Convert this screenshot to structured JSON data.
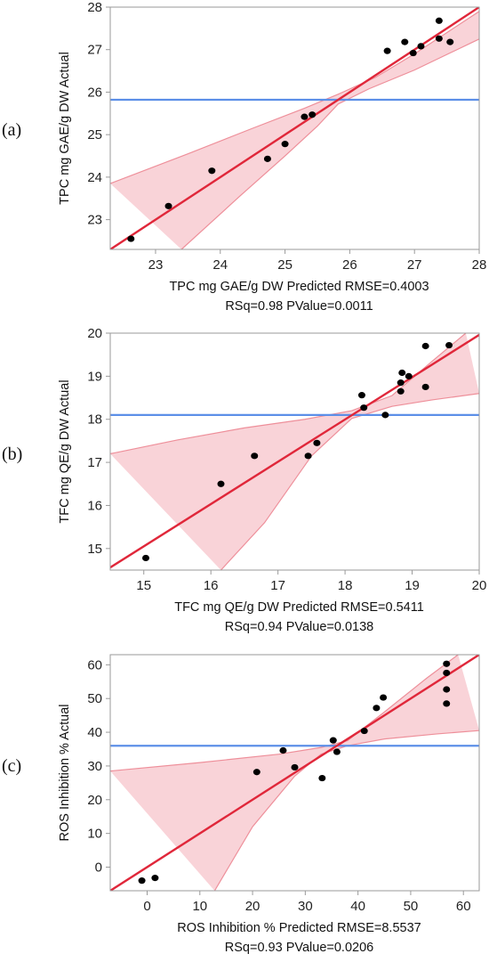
{
  "colors": {
    "fit_line": "#e0273a",
    "confidence_band": "#f9d3d8",
    "confidence_edge": "#ee8f9a",
    "mean_line": "#5c8fe8",
    "points": "#000000",
    "frame": "#9a9a9a"
  },
  "chart_data": [
    {
      "type": "scatter",
      "panel_label": "(a)",
      "xlabel": "TPC mg GAE/g DW Predicted RMSE=0.4003",
      "stat_line": "RSq=0.98 PValue=0.0011",
      "ylabel": "TPC mg GAE/g DW Actual",
      "xlim": [
        22.3,
        28
      ],
      "ylim": [
        22.3,
        28
      ],
      "xticks": [
        "23",
        "24",
        "25",
        "26",
        "27",
        "28"
      ],
      "yticks": [
        "23",
        "24",
        "25",
        "26",
        "27",
        "28"
      ],
      "mean_y": 25.82,
      "fit_line": [
        [
          22.3,
          22.3
        ],
        [
          28,
          28
        ]
      ],
      "band_upper": [
        [
          22.3,
          23.85
        ],
        [
          23.5,
          24.55
        ],
        [
          24.5,
          25.15
        ],
        [
          25.3,
          25.62
        ],
        [
          25.82,
          25.95
        ],
        [
          26.4,
          26.35
        ],
        [
          27,
          26.9
        ],
        [
          28,
          27.9
        ]
      ],
      "band_lower": [
        [
          23.4,
          22.3
        ],
        [
          24.3,
          23.55
        ],
        [
          25.0,
          24.5
        ],
        [
          25.5,
          25.2
        ],
        [
          25.82,
          25.72
        ],
        [
          26.3,
          26.08
        ],
        [
          27.0,
          26.52
        ],
        [
          28,
          27.25
        ]
      ],
      "points": [
        {
          "x": 22.62,
          "y": 22.55
        },
        {
          "x": 23.2,
          "y": 23.32
        },
        {
          "x": 23.87,
          "y": 24.15
        },
        {
          "x": 24.73,
          "y": 24.43
        },
        {
          "x": 25.0,
          "y": 24.78
        },
        {
          "x": 25.3,
          "y": 25.42
        },
        {
          "x": 25.42,
          "y": 25.47
        },
        {
          "x": 26.58,
          "y": 26.97
        },
        {
          "x": 26.85,
          "y": 27.18
        },
        {
          "x": 26.98,
          "y": 26.92
        },
        {
          "x": 27.1,
          "y": 27.08
        },
        {
          "x": 27.38,
          "y": 27.26
        },
        {
          "x": 27.38,
          "y": 27.68
        },
        {
          "x": 27.55,
          "y": 27.18
        }
      ]
    },
    {
      "type": "scatter",
      "panel_label": "(b)",
      "xlabel": "TFC mg QE/g DW Predicted RMSE=0.5411",
      "stat_line": "RSq=0.94 PValue=0.0138",
      "ylabel": "TFC mg QE/g DW Actual",
      "xlim": [
        14.5,
        20
      ],
      "ylim": [
        14.5,
        20
      ],
      "xticks": [
        "15",
        "16",
        "17",
        "18",
        "19",
        "20"
      ],
      "yticks": [
        "15",
        "16",
        "17",
        "18",
        "19",
        "20"
      ],
      "mean_y": 18.1,
      "fit_line": [
        [
          14.5,
          14.56
        ],
        [
          20,
          19.96
        ]
      ],
      "band_upper": [
        [
          14.5,
          17.2
        ],
        [
          15.5,
          17.52
        ],
        [
          16.5,
          17.8
        ],
        [
          17.4,
          18.0
        ],
        [
          18.1,
          18.2
        ],
        [
          18.7,
          18.55
        ],
        [
          19.3,
          19.35
        ],
        [
          19.8,
          20.0
        ]
      ],
      "band_lower": [
        [
          16.15,
          14.5
        ],
        [
          16.8,
          15.6
        ],
        [
          17.5,
          17.15
        ],
        [
          18.1,
          18.02
        ],
        [
          18.7,
          18.3
        ],
        [
          19.3,
          18.45
        ],
        [
          20,
          18.6
        ]
      ],
      "points": [
        {
          "x": 15.03,
          "y": 14.78
        },
        {
          "x": 16.15,
          "y": 16.5
        },
        {
          "x": 16.65,
          "y": 17.15
        },
        {
          "x": 17.45,
          "y": 17.15
        },
        {
          "x": 17.58,
          "y": 17.45
        },
        {
          "x": 18.25,
          "y": 18.56
        },
        {
          "x": 18.28,
          "y": 18.27
        },
        {
          "x": 18.6,
          "y": 18.1
        },
        {
          "x": 18.83,
          "y": 18.65
        },
        {
          "x": 18.83,
          "y": 18.85
        },
        {
          "x": 18.85,
          "y": 19.08
        },
        {
          "x": 18.95,
          "y": 19.0
        },
        {
          "x": 19.2,
          "y": 19.7
        },
        {
          "x": 19.2,
          "y": 18.75
        },
        {
          "x": 19.55,
          "y": 19.72
        }
      ]
    },
    {
      "type": "scatter",
      "panel_label": "(c)",
      "xlabel": "ROS Inhibition % Predicted RMSE=8.5537",
      "stat_line": "RSq=0.93 PValue=0.0206",
      "ylabel": "ROS Inhibition % Actual",
      "xlim": [
        -7,
        63
      ],
      "ylim": [
        -7,
        63
      ],
      "xticks": [
        "0",
        "10",
        "20",
        "30",
        "40",
        "50",
        "60"
      ],
      "yticks": [
        "0",
        "10",
        "20",
        "30",
        "40",
        "50",
        "60"
      ],
      "mean_y": 36,
      "fit_line": [
        [
          -7,
          -7
        ],
        [
          63,
          63
        ]
      ],
      "band_upper": [
        [
          -7,
          28.5
        ],
        [
          10,
          31
        ],
        [
          25,
          33.5
        ],
        [
          33,
          35.5
        ],
        [
          38,
          37.5
        ],
        [
          45,
          46
        ],
        [
          53,
          56
        ],
        [
          59,
          63
        ]
      ],
      "band_lower": [
        [
          12.8,
          -7
        ],
        [
          20,
          12
        ],
        [
          28,
          27
        ],
        [
          33,
          33.5
        ],
        [
          38,
          36
        ],
        [
          45,
          38
        ],
        [
          55,
          39.5
        ],
        [
          63,
          40.5
        ]
      ],
      "points": [
        {
          "x": -1,
          "y": -4
        },
        {
          "x": 1.5,
          "y": -3.2
        },
        {
          "x": 20.8,
          "y": 28.2
        },
        {
          "x": 25.8,
          "y": 34.6
        },
        {
          "x": 28,
          "y": 29.6
        },
        {
          "x": 33.2,
          "y": 26.4
        },
        {
          "x": 35.3,
          "y": 37.6
        },
        {
          "x": 36,
          "y": 34.2
        },
        {
          "x": 41.2,
          "y": 40.4
        },
        {
          "x": 43.5,
          "y": 47.2
        },
        {
          "x": 44.8,
          "y": 50.3
        },
        {
          "x": 56.8,
          "y": 60.3
        },
        {
          "x": 56.8,
          "y": 57.6
        },
        {
          "x": 56.8,
          "y": 52.7
        },
        {
          "x": 56.8,
          "y": 48.5
        }
      ]
    }
  ]
}
